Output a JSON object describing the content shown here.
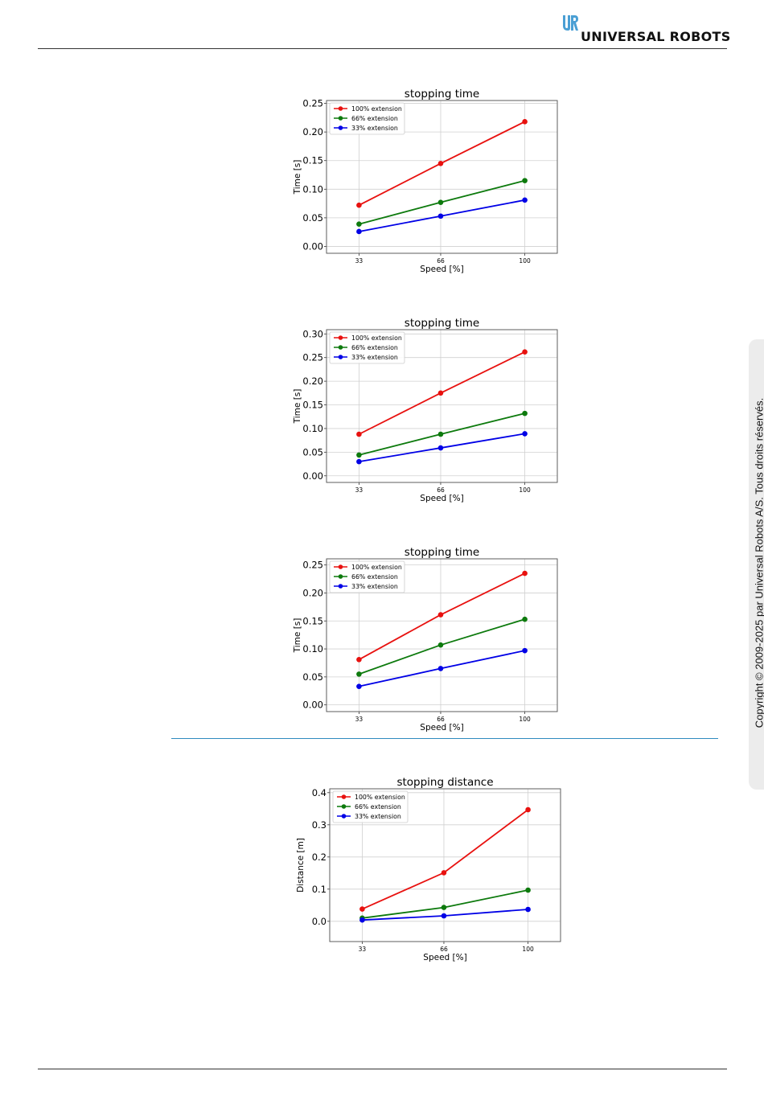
{
  "header": {
    "brand": "UNIVERSAL ROBOTS",
    "logo_icon": "ur-logo-icon",
    "accent_color": "#4a9fd4"
  },
  "sidebar": {
    "copyright": "Copyright © 2009-2025 par Universal Robots A/S. Tous droits réservés."
  },
  "colors": {
    "series": [
      "#e8110f",
      "#0d7a0d",
      "#0000e6"
    ],
    "section_rule": "#2e8bbf"
  },
  "chart_data": [
    {
      "type": "line",
      "title": "stopping time",
      "xlabel": "Speed [%]",
      "ylabel": "Time [s]",
      "x": [
        33,
        66,
        100
      ],
      "xticks": [
        "33",
        "66",
        "100"
      ],
      "ylim": [
        -0.012,
        0.255
      ],
      "yticks": [
        "0.00",
        "0.05",
        "0.10",
        "0.15",
        "0.20",
        "0.25"
      ],
      "ytick_values": [
        0,
        0.05,
        0.1,
        0.15,
        0.2,
        0.25
      ],
      "grid": true,
      "legend": "upper-left",
      "series": [
        {
          "name": "100% extension",
          "color": "#e8110f",
          "values": [
            0.072,
            0.145,
            0.218
          ]
        },
        {
          "name": "66% extension",
          "color": "#0d7a0d",
          "values": [
            0.039,
            0.077,
            0.115
          ]
        },
        {
          "name": "33% extension",
          "color": "#0000e6",
          "values": [
            0.026,
            0.053,
            0.081
          ]
        }
      ]
    },
    {
      "type": "line",
      "title": "stopping time",
      "xlabel": "Speed [%]",
      "ylabel": "Time [s]",
      "x": [
        33,
        66,
        100
      ],
      "xticks": [
        "33",
        "66",
        "100"
      ],
      "ylim": [
        -0.014,
        0.309
      ],
      "yticks": [
        "0.00",
        "0.05",
        "0.10",
        "0.15",
        "0.20",
        "0.25",
        "0.30"
      ],
      "ytick_values": [
        0,
        0.05,
        0.1,
        0.15,
        0.2,
        0.25,
        0.3
      ],
      "grid": true,
      "legend": "upper-left",
      "series": [
        {
          "name": "100% extension",
          "color": "#e8110f",
          "values": [
            0.088,
            0.175,
            0.262
          ]
        },
        {
          "name": "66% extension",
          "color": "#0d7a0d",
          "values": [
            0.044,
            0.088,
            0.132
          ]
        },
        {
          "name": "33% extension",
          "color": "#0000e6",
          "values": [
            0.03,
            0.059,
            0.089
          ]
        }
      ]
    },
    {
      "type": "line",
      "title": "stopping time",
      "xlabel": "Speed [%]",
      "ylabel": "Time [s]",
      "x": [
        33,
        66,
        100
      ],
      "xticks": [
        "33",
        "66",
        "100"
      ],
      "ylim": [
        -0.012,
        0.261
      ],
      "yticks": [
        "0.00",
        "0.05",
        "0.10",
        "0.15",
        "0.20",
        "0.25"
      ],
      "ytick_values": [
        0,
        0.05,
        0.1,
        0.15,
        0.2,
        0.25
      ],
      "grid": true,
      "legend": "upper-left",
      "series": [
        {
          "name": "100% extension",
          "color": "#e8110f",
          "values": [
            0.081,
            0.161,
            0.235
          ]
        },
        {
          "name": "66% extension",
          "color": "#0d7a0d",
          "values": [
            0.055,
            0.107,
            0.153
          ]
        },
        {
          "name": "33% extension",
          "color": "#0000e6",
          "values": [
            0.033,
            0.065,
            0.097
          ]
        }
      ]
    },
    {
      "type": "line",
      "title": "stopping distance",
      "xlabel": "Speed [%]",
      "ylabel": "Distance [m]",
      "x": [
        33,
        66,
        100
      ],
      "xticks": [
        "33",
        "66",
        "100"
      ],
      "ylim": [
        -0.063,
        0.412
      ],
      "yticks": [
        "0.0",
        "0.1",
        "0.2",
        "0.3",
        "0.4"
      ],
      "ytick_values": [
        0,
        0.1,
        0.2,
        0.3,
        0.4
      ],
      "grid": true,
      "legend": "upper-left",
      "series": [
        {
          "name": "100% extension",
          "color": "#e8110f",
          "values": [
            0.038,
            0.151,
            0.347
          ]
        },
        {
          "name": "66% extension",
          "color": "#0d7a0d",
          "values": [
            0.01,
            0.043,
            0.097
          ]
        },
        {
          "name": "33% extension",
          "color": "#0000e6",
          "values": [
            0.004,
            0.017,
            0.037
          ]
        }
      ]
    }
  ]
}
